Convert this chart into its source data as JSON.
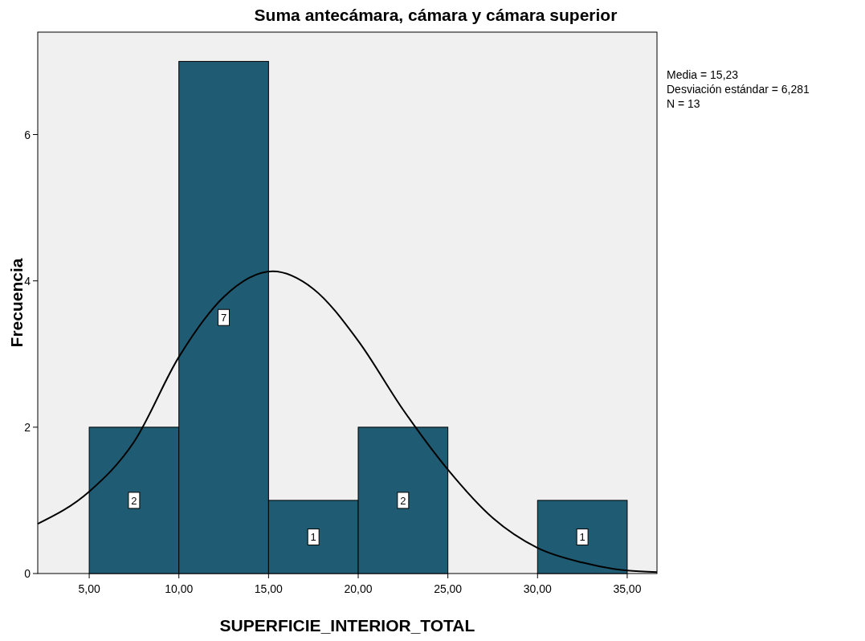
{
  "chart_data": {
    "type": "histogram",
    "title": "Suma antecámara, cámara y cámara superior",
    "xlabel": "SUPERFICIE_INTERIOR_TOTAL",
    "ylabel": "Frecuencia",
    "annotations": [
      "Media = 15,23",
      "Desviación estándar = 6,281",
      "N = 13"
    ],
    "bins": [
      5,
      10,
      15,
      20,
      25,
      30,
      35
    ],
    "values": [
      2,
      7,
      1,
      2,
      0,
      1
    ],
    "color": "#1f5c73",
    "value_labels": [
      "2",
      "7",
      "1",
      "2",
      null,
      "1"
    ],
    "series": [
      {
        "type": "line",
        "color": "#000000",
        "x": [
          2.13,
          5,
          7.5,
          10,
          12.5,
          15.23,
          17.5,
          20,
          22.5,
          25,
          27.5,
          30,
          32.5,
          35,
          36.66
        ],
        "values": [
          0.68,
          1.12,
          1.8,
          2.96,
          3.78,
          4.13,
          3.89,
          3.18,
          2.24,
          1.42,
          0.76,
          0.35,
          0.15,
          0.04,
          0.02
        ]
      }
    ],
    "xlim": [
      2.13,
      36.66
    ],
    "ylim": [
      0,
      7.4
    ],
    "xticks": [
      {
        "value": 5,
        "label": "5,00"
      },
      {
        "value": 10,
        "label": "10,00"
      },
      {
        "value": 15,
        "label": "15,00"
      },
      {
        "value": 20,
        "label": "20,00"
      },
      {
        "value": 25,
        "label": "25,00"
      },
      {
        "value": 30,
        "label": "30,00"
      },
      {
        "value": 35,
        "label": "35,00"
      }
    ],
    "yticks": [
      0,
      2,
      4,
      6
    ],
    "grid": false
  }
}
